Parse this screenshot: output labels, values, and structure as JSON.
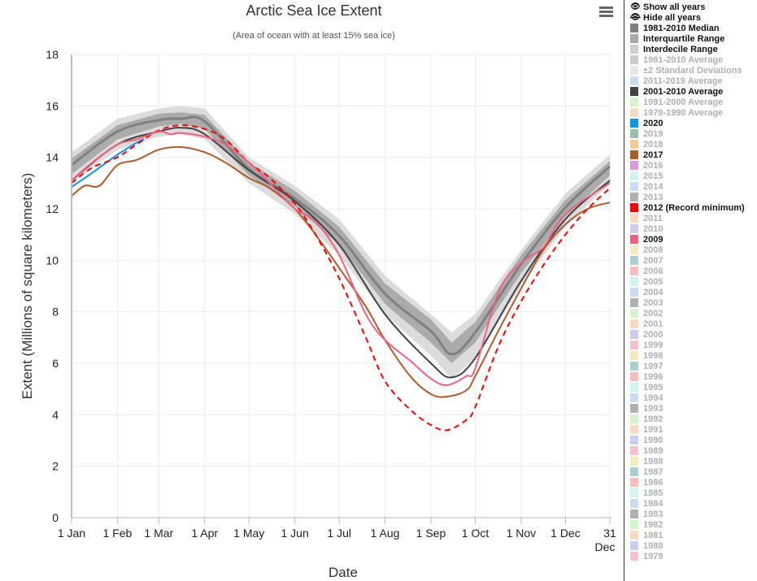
{
  "header": {
    "title": "Arctic Sea Ice Extent",
    "subtitle": "(Area of ocean with at least 15% sea ice)",
    "menu_icon": "hamburger-menu-icon"
  },
  "legend": {
    "show_all": "Show all years",
    "show_icon": "eye-icon",
    "hide_all": "Hide all years",
    "hide_icon": "eye-slash-icon",
    "items": [
      {
        "label": "1981-2010 Median",
        "color": "#808080",
        "visible": true
      },
      {
        "label": "Interquartile Range",
        "color": "#a8a8a8",
        "visible": true
      },
      {
        "label": "Interdecile Range",
        "color": "#d0d0d0",
        "visible": true
      },
      {
        "label": "1981-2010 Average",
        "color": "#cccccc",
        "visible": false
      },
      {
        "label": "±2 Standard Deviations",
        "color": "#e8e8e8",
        "visible": false
      },
      {
        "label": "2011-2019 Average",
        "color": "#c8ddf5",
        "visible": false
      },
      {
        "label": "2001-2010 Average",
        "color": "#404045",
        "visible": true
      },
      {
        "label": "1991-2000 Average",
        "color": "#d4f5cc",
        "visible": false
      },
      {
        "label": "1979-1990 Average",
        "color": "#fcd9bf",
        "visible": false
      },
      {
        "label": "2020",
        "color": "#0b94f0",
        "visible": true
      },
      {
        "label": "2019",
        "color": "#9cbfa8",
        "visible": false
      },
      {
        "label": "2018",
        "color": "#fdc894",
        "visible": false
      },
      {
        "label": "2017",
        "color": "#b15a2a",
        "visible": true
      },
      {
        "label": "2016",
        "color": "#dc98dc",
        "visible": false
      },
      {
        "label": "2015",
        "color": "#d0f3ef",
        "visible": false
      },
      {
        "label": "2014",
        "color": "#c8ddf5",
        "visible": false
      },
      {
        "label": "2013",
        "color": "#b0b0b0",
        "visible": false
      },
      {
        "label": "2012 (Record minimum)",
        "color": "#ff0000",
        "visible": true
      },
      {
        "label": "2011",
        "color": "#fcd9bf",
        "visible": false
      },
      {
        "label": "2010",
        "color": "#cccdf2",
        "visible": false
      },
      {
        "label": "2009",
        "color": "#f06080",
        "visible": true
      },
      {
        "label": "2008",
        "color": "#f5eabb",
        "visible": false
      },
      {
        "label": "2007",
        "color": "#a8d0d0",
        "visible": false
      },
      {
        "label": "2006",
        "color": "#fcbcbc",
        "visible": false
      },
      {
        "label": "2005",
        "color": "#d0f3ef",
        "visible": false
      },
      {
        "label": "2004",
        "color": "#c8ddf5",
        "visible": false
      },
      {
        "label": "2003",
        "color": "#b0b0b0",
        "visible": false
      },
      {
        "label": "2002",
        "color": "#d4f5cc",
        "visible": false
      },
      {
        "label": "2001",
        "color": "#fcd9bf",
        "visible": false
      },
      {
        "label": "2000",
        "color": "#cccdf2",
        "visible": false
      },
      {
        "label": "1999",
        "color": "#f9c0d0",
        "visible": false
      },
      {
        "label": "1998",
        "color": "#f5eabb",
        "visible": false
      },
      {
        "label": "1997",
        "color": "#a8d0d0",
        "visible": false
      },
      {
        "label": "1996",
        "color": "#fcbcbc",
        "visible": false
      },
      {
        "label": "1995",
        "color": "#d0f3ef",
        "visible": false
      },
      {
        "label": "1994",
        "color": "#c8ddf5",
        "visible": false
      },
      {
        "label": "1993",
        "color": "#b0b0b0",
        "visible": false
      },
      {
        "label": "1992",
        "color": "#d4f5cc",
        "visible": false
      },
      {
        "label": "1991",
        "color": "#fcd9bf",
        "visible": false
      },
      {
        "label": "1990",
        "color": "#cccdf2",
        "visible": false
      },
      {
        "label": "1989",
        "color": "#f9c0d0",
        "visible": false
      },
      {
        "label": "1988",
        "color": "#f5eabb",
        "visible": false
      },
      {
        "label": "1987",
        "color": "#a8d0d0",
        "visible": false
      },
      {
        "label": "1986",
        "color": "#fcbcbc",
        "visible": false
      },
      {
        "label": "1985",
        "color": "#d0f3ef",
        "visible": false
      },
      {
        "label": "1984",
        "color": "#c8ddf5",
        "visible": false
      },
      {
        "label": "1983",
        "color": "#b0b0b0",
        "visible": false
      },
      {
        "label": "1982",
        "color": "#d4f5cc",
        "visible": false
      },
      {
        "label": "1981",
        "color": "#fcd9bf",
        "visible": false
      },
      {
        "label": "1980",
        "color": "#cccdf2",
        "visible": false
      },
      {
        "label": "1979",
        "color": "#f9c0d0",
        "visible": false
      }
    ]
  },
  "chart_data": {
    "type": "line",
    "title": "Arctic Sea Ice Extent",
    "subtitle": "(Area of ocean with at least 15% sea ice)",
    "xlabel": "Date",
    "ylabel": "Extent (Millions of square kilometers)",
    "ylim": [
      0,
      18
    ],
    "yticks": [
      0,
      2,
      4,
      6,
      8,
      10,
      12,
      14,
      16,
      18
    ],
    "xlim_day_of_year": [
      1,
      365
    ],
    "xticks": [
      {
        "day": 1,
        "label": "1 Jan"
      },
      {
        "day": 32,
        "label": "1 Feb"
      },
      {
        "day": 60,
        "label": "1 Mar"
      },
      {
        "day": 91,
        "label": "1 Apr"
      },
      {
        "day": 121,
        "label": "1 May"
      },
      {
        "day": 152,
        "label": "1 Jun"
      },
      {
        "day": 182,
        "label": "1 Jul"
      },
      {
        "day": 213,
        "label": "1 Aug"
      },
      {
        "day": 244,
        "label": "1 Sep"
      },
      {
        "day": 274,
        "label": "1 Oct"
      },
      {
        "day": 305,
        "label": "1 Nov"
      },
      {
        "day": 335,
        "label": "1 Dec"
      },
      {
        "day": 365,
        "label": "31",
        "label2": "Dec"
      }
    ],
    "grid": true,
    "legend_placement": "right",
    "bands": [
      {
        "name": "Interdecile Range",
        "color": "#dcdcdc",
        "x": [
          1,
          32,
          60,
          75,
          91,
          121,
          152,
          182,
          213,
          244,
          258,
          274,
          305,
          335,
          365
        ],
        "low": [
          13.0,
          14.3,
          14.8,
          14.9,
          14.7,
          13.0,
          11.8,
          10.2,
          7.9,
          6.3,
          5.4,
          6.2,
          9.0,
          11.3,
          13.0
        ],
        "high": [
          14.2,
          15.5,
          15.9,
          16.0,
          15.9,
          14.0,
          12.9,
          11.6,
          9.4,
          7.9,
          7.2,
          7.9,
          10.4,
          12.6,
          14.1
        ]
      },
      {
        "name": "Interquartile Range",
        "color": "#ababab",
        "x": [
          1,
          32,
          60,
          75,
          91,
          121,
          152,
          182,
          213,
          244,
          258,
          274,
          305,
          335,
          365
        ],
        "low": [
          13.35,
          14.7,
          15.2,
          15.3,
          15.1,
          13.3,
          12.1,
          10.6,
          8.3,
          6.8,
          6.0,
          6.8,
          9.5,
          11.7,
          13.3
        ],
        "high": [
          13.95,
          15.25,
          15.7,
          15.75,
          15.65,
          13.8,
          12.7,
          11.3,
          9.1,
          7.7,
          6.8,
          7.6,
          10.2,
          12.35,
          13.85
        ]
      }
    ],
    "series": [
      {
        "name": "1981-2010 Median",
        "color": "#808080",
        "width": 3,
        "dash": false,
        "x": [
          1,
          32,
          60,
          75,
          91,
          121,
          152,
          182,
          213,
          244,
          258,
          274,
          305,
          335,
          365
        ],
        "y": [
          13.7,
          15.0,
          15.45,
          15.5,
          15.4,
          13.55,
          12.4,
          10.95,
          8.7,
          7.25,
          6.35,
          7.2,
          9.85,
          12.05,
          13.65
        ]
      },
      {
        "name": "2001-2010 Average",
        "color": "#404045",
        "width": 2,
        "dash": false,
        "x": [
          1,
          32,
          60,
          75,
          91,
          121,
          152,
          182,
          213,
          244,
          258,
          274,
          305,
          335,
          365
        ],
        "y": [
          13.1,
          14.5,
          15.0,
          15.15,
          14.9,
          13.5,
          12.3,
          10.6,
          7.9,
          6.0,
          5.45,
          6.2,
          9.2,
          11.6,
          13.1
        ]
      },
      {
        "name": "2020",
        "color": "#0b94f0",
        "width": 2,
        "dash": false,
        "x": [
          1,
          15,
          32,
          46,
          50
        ],
        "y": [
          12.85,
          13.4,
          14.1,
          14.6,
          14.7
        ]
      },
      {
        "name": "2017",
        "color": "#b15a2a",
        "width": 2,
        "dash": false,
        "x": [
          1,
          10,
          20,
          32,
          45,
          60,
          75,
          91,
          105,
          121,
          135,
          152,
          166,
          182,
          200,
          213,
          230,
          244,
          255,
          268,
          274,
          290,
          305,
          320,
          335,
          350,
          365
        ],
        "y": [
          12.5,
          12.9,
          12.9,
          13.7,
          13.9,
          14.3,
          14.4,
          14.2,
          13.8,
          13.2,
          12.8,
          12.0,
          11.0,
          9.7,
          8.2,
          6.9,
          5.5,
          4.8,
          4.7,
          4.95,
          5.5,
          7.3,
          8.9,
          10.4,
          11.4,
          12.0,
          12.25
        ]
      },
      {
        "name": "2012 (Record minimum)",
        "color": "#ff0000",
        "width": 2,
        "dash": true,
        "x": [
          1,
          15,
          32,
          45,
          60,
          75,
          91,
          105,
          121,
          135,
          152,
          166,
          182,
          200,
          213,
          230,
          244,
          255,
          268,
          274,
          290,
          305,
          320,
          335,
          350,
          365
        ],
        "y": [
          13.0,
          13.6,
          14.0,
          14.5,
          15.05,
          15.25,
          15.1,
          14.7,
          13.8,
          13.2,
          12.2,
          11.0,
          9.3,
          7.0,
          5.3,
          4.2,
          3.6,
          3.4,
          3.8,
          4.3,
          6.7,
          8.4,
          9.8,
          11.0,
          12.0,
          12.8
        ]
      },
      {
        "name": "2009",
        "color": "#f06080",
        "width": 2,
        "dash": false,
        "x": [
          1,
          15,
          32,
          45,
          60,
          68,
          75,
          91,
          105,
          121,
          135,
          152,
          166,
          182,
          200,
          213,
          230,
          244,
          255,
          268,
          274,
          290,
          305,
          320,
          335,
          365
        ],
        "y": [
          13.1,
          13.8,
          14.5,
          14.7,
          15.0,
          14.9,
          14.95,
          14.8,
          14.5,
          13.8,
          13.0,
          12.0,
          11.5,
          10.2,
          7.9,
          6.9,
          6.1,
          5.4,
          5.15,
          5.5,
          5.8,
          8.8,
          9.9,
          10.5,
          11.8,
          13.0
        ]
      }
    ]
  }
}
